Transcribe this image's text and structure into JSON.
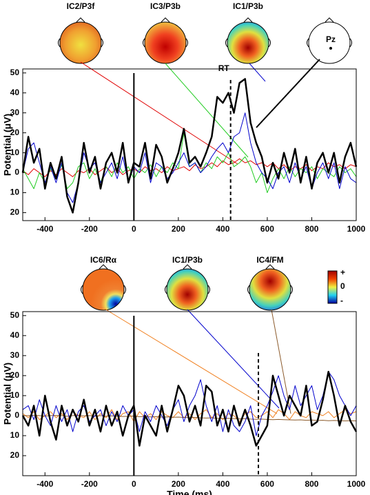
{
  "chart_data": [
    {
      "type": "line",
      "y_label": "Potential (μV)",
      "maps": [
        "IC2/P3f",
        "IC3/P3b",
        "IC1/P3b"
      ],
      "channel": "Pz",
      "rt": 435,
      "rt_label": "RT",
      "onset": 0,
      "xlim": [
        -500,
        1000
      ],
      "xticks": [
        -400,
        -200,
        0,
        200,
        400,
        600,
        800,
        1000
      ],
      "ylim": [
        -24,
        52
      ],
      "yticks": [
        50,
        40,
        30,
        20,
        10,
        0,
        {
          "value": -10,
          "label": "10"
        },
        {
          "value": -20,
          "label": "20"
        }
      ],
      "x": [
        -500,
        -475,
        -450,
        -425,
        -400,
        -375,
        -350,
        -325,
        -300,
        -275,
        -250,
        -225,
        -200,
        -175,
        -150,
        -125,
        -100,
        -75,
        -50,
        -25,
        0,
        25,
        50,
        75,
        100,
        125,
        150,
        175,
        200,
        225,
        250,
        275,
        300,
        325,
        350,
        375,
        400,
        425,
        450,
        475,
        500,
        525,
        550,
        575,
        600,
        625,
        650,
        675,
        700,
        725,
        750,
        775,
        800,
        825,
        850,
        875,
        900,
        925,
        950,
        975,
        1000
      ],
      "series": [
        {
          "name": "IC2/P3f",
          "color": "#e00000",
          "width": 1,
          "values": [
            1,
            -1,
            2,
            0,
            -2,
            1,
            -1,
            2,
            0,
            -2,
            1,
            0,
            2,
            -1,
            1,
            3,
            0,
            2,
            -1,
            1,
            2,
            0,
            3,
            1,
            2,
            0,
            3,
            1,
            2,
            3,
            1,
            4,
            2,
            3,
            5,
            3,
            6,
            4,
            5,
            7,
            5,
            6,
            4,
            5,
            3,
            5,
            2,
            4,
            1,
            3,
            2,
            4,
            1,
            3,
            2,
            5,
            3,
            4,
            2,
            4,
            3
          ]
        },
        {
          "name": "IC3/P3b",
          "color": "#22cc22",
          "width": 1,
          "values": [
            2,
            -3,
            -8,
            0,
            -5,
            2,
            -3,
            4,
            -8,
            -5,
            3,
            5,
            -3,
            2,
            -5,
            3,
            -2,
            5,
            0,
            3,
            -3,
            2,
            0,
            4,
            -2,
            3,
            0,
            5,
            2,
            20,
            3,
            5,
            0,
            5,
            2,
            8,
            5,
            10,
            3,
            5,
            8,
            3,
            -5,
            0,
            -10,
            -3,
            2,
            -3,
            3,
            -2,
            2,
            0,
            3,
            -3,
            2,
            0,
            -2,
            3,
            0,
            2,
            -2
          ]
        },
        {
          "name": "IC1/P3b",
          "color": "#0000cc",
          "width": 1,
          "values": [
            0,
            12,
            15,
            5,
            -5,
            3,
            -5,
            5,
            -10,
            -15,
            -5,
            10,
            2,
            5,
            -5,
            0,
            5,
            -3,
            8,
            -5,
            3,
            0,
            10,
            -5,
            5,
            3,
            -3,
            0,
            5,
            10,
            3,
            5,
            0,
            3,
            8,
            12,
            15,
            10,
            18,
            20,
            30,
            15,
            5,
            0,
            -3,
            -8,
            0,
            3,
            -5,
            5,
            -3,
            3,
            -8,
            0,
            5,
            -3,
            5,
            -8,
            3,
            -3,
            -5
          ]
        },
        {
          "name": "Pz",
          "color": "#000000",
          "width": 2.5,
          "values": [
            0,
            18,
            5,
            12,
            -8,
            5,
            -3,
            8,
            -12,
            -20,
            -5,
            15,
            0,
            8,
            -8,
            5,
            10,
            0,
            15,
            -5,
            5,
            3,
            15,
            -3,
            14,
            8,
            -5,
            2,
            10,
            22,
            5,
            8,
            3,
            10,
            18,
            38,
            35,
            40,
            30,
            45,
            47,
            25,
            15,
            8,
            -5,
            5,
            -3,
            10,
            0,
            12,
            -5,
            8,
            -8,
            5,
            10,
            0,
            10,
            -5,
            8,
            15,
            3
          ]
        }
      ]
    },
    {
      "type": "line",
      "y_label": "Potential (μV)",
      "x_label": "Time (ms)",
      "maps": [
        "IC6/Rα",
        "IC1/P3b",
        "IC4/FM"
      ],
      "colorbar": [
        "+",
        "0",
        "-"
      ],
      "rt": 560,
      "onset": 0,
      "xlim": [
        -500,
        1000
      ],
      "xticks": [
        -400,
        -200,
        0,
        200,
        400,
        600,
        800,
        1000
      ],
      "ylim": [
        -30,
        52
      ],
      "yticks": [
        50,
        40,
        30,
        20,
        10,
        0,
        {
          "value": -10,
          "label": "10"
        },
        {
          "value": -20,
          "label": "20"
        }
      ],
      "x": [
        -500,
        -475,
        -450,
        -425,
        -400,
        -375,
        -350,
        -325,
        -300,
        -275,
        -250,
        -225,
        -200,
        -175,
        -150,
        -125,
        -100,
        -75,
        -50,
        -25,
        0,
        25,
        50,
        75,
        100,
        125,
        150,
        175,
        200,
        225,
        250,
        275,
        300,
        325,
        350,
        375,
        400,
        425,
        450,
        475,
        500,
        525,
        550,
        575,
        600,
        625,
        650,
        675,
        700,
        725,
        750,
        775,
        800,
        825,
        850,
        875,
        900,
        925,
        950,
        975,
        1000
      ],
      "series": [
        {
          "name": "IC6/Rα",
          "color": "#f08020",
          "width": 1,
          "values": [
            1,
            -1,
            2,
            -2,
            0,
            2,
            -1,
            1,
            -2,
            2,
            0,
            -1,
            2,
            -2,
            1,
            -1,
            3,
            -2,
            1,
            2,
            -3,
            2,
            -1,
            1,
            -2,
            2,
            0,
            -1,
            2,
            -1,
            1,
            -2,
            1,
            3,
            -1,
            1,
            -2,
            1,
            0,
            -3,
            1,
            2,
            -1,
            0,
            2,
            -1,
            3,
            1,
            -2,
            2,
            0,
            -1,
            2,
            1,
            0,
            2,
            -1,
            1,
            3,
            1,
            2
          ]
        },
        {
          "name": "IC4/FM",
          "color": "#8b5a2b",
          "width": 1,
          "values": [
            0,
            0,
            0.2,
            0,
            -0.2,
            0,
            0.1,
            0,
            -0.3,
            0,
            0.2,
            -0.1,
            0,
            -0.2,
            0,
            -0.3,
            -0.1,
            -0.2,
            -0.4,
            -0.3,
            -0.2,
            -0.5,
            -0.4,
            -0.6,
            -0.5,
            -0.7,
            -0.6,
            -0.8,
            -0.7,
            -0.9,
            -1,
            -0.9,
            -1.1,
            -1.2,
            -1.1,
            -1.3,
            -1.4,
            -1.3,
            -1.5,
            -1.6,
            -1.5,
            -1.7,
            -1.8,
            -1.7,
            -1.9,
            -2,
            -1.9,
            -2,
            -2.1,
            -2.2,
            -2.1,
            -2.3,
            -2.2,
            -2.4,
            -2.3,
            -2.5,
            -2.4,
            -2.5,
            -2.6,
            -2.5,
            -2.6
          ]
        },
        {
          "name": "IC1/P3b",
          "color": "#0000cc",
          "width": 1,
          "values": [
            3,
            5,
            -2,
            8,
            0,
            -5,
            5,
            -3,
            3,
            -8,
            2,
            5,
            -3,
            0,
            3,
            -5,
            2,
            -3,
            5,
            0,
            3,
            -8,
            2,
            -3,
            5,
            0,
            -5,
            3,
            8,
            -3,
            5,
            10,
            18,
            5,
            -3,
            5,
            -8,
            3,
            -5,
            -8,
            -3,
            5,
            -10,
            0,
            5,
            12,
            20,
            10,
            3,
            15,
            5,
            10,
            15,
            3,
            10,
            22,
            18,
            10,
            5,
            0,
            5
          ]
        },
        {
          "name": "Pz",
          "color": "#000000",
          "width": 2.5,
          "values": [
            0,
            -5,
            5,
            -10,
            10,
            -3,
            -12,
            5,
            -5,
            3,
            -3,
            8,
            -5,
            3,
            -8,
            5,
            -5,
            2,
            -10,
            0,
            5,
            -15,
            0,
            -5,
            -10,
            5,
            -8,
            3,
            15,
            10,
            -3,
            5,
            -5,
            15,
            12,
            -5,
            3,
            -8,
            5,
            -5,
            3,
            -5,
            -15,
            -10,
            -5,
            20,
            10,
            0,
            10,
            5,
            0,
            15,
            -5,
            -3,
            8,
            22,
            10,
            -5,
            5,
            -3,
            -8
          ]
        }
      ]
    }
  ]
}
